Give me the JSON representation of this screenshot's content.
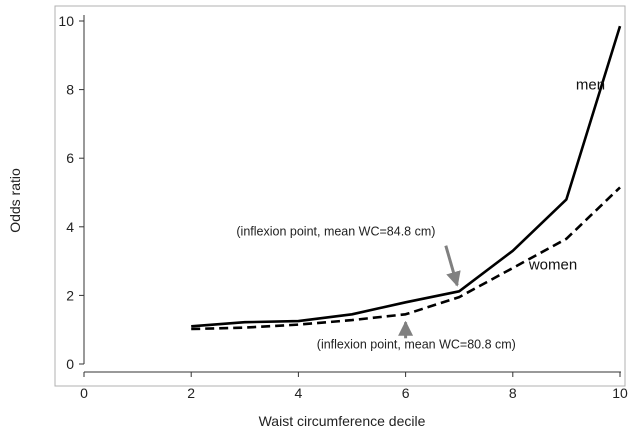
{
  "chart_data": {
    "type": "line",
    "xlabel": "Waist circumference decile",
    "ylabel": "Odds ratio",
    "xlim": [
      0,
      10
    ],
    "ylim": [
      0,
      10
    ],
    "x_ticks": [
      "0",
      "2",
      "4",
      "6",
      "8",
      "10"
    ],
    "y_ticks": [
      "0",
      "2",
      "4",
      "6",
      "8",
      "10"
    ],
    "grid": false,
    "x": [
      2,
      3,
      4,
      5,
      6,
      7,
      8,
      9,
      10
    ],
    "series": [
      {
        "name": "men",
        "style": "solid",
        "color": "#000000",
        "values": [
          1.1,
          1.22,
          1.25,
          1.45,
          1.8,
          2.12,
          3.3,
          4.8,
          9.85
        ]
      },
      {
        "name": "women",
        "style": "dashed",
        "color": "#000000",
        "values": [
          1.02,
          1.06,
          1.15,
          1.28,
          1.45,
          1.95,
          2.8,
          3.65,
          5.15
        ]
      }
    ],
    "annotations": [
      {
        "text": "(inflexion point, mean WC=84.8 cm)",
        "points_to": {
          "x": 7,
          "y": 2.12
        },
        "arrow_color": "#808080"
      },
      {
        "text": "(inflexion point, mean WC=80.8 cm)",
        "points_to": {
          "x": 6,
          "y": 1.45
        },
        "arrow_color": "#808080"
      }
    ]
  }
}
